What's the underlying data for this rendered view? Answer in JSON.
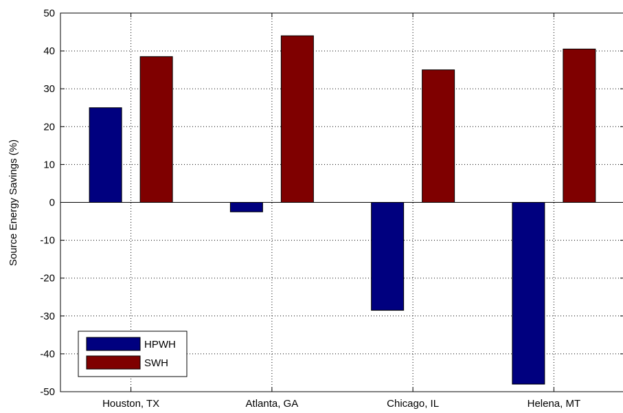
{
  "chart_data": {
    "type": "bar",
    "title": "",
    "xlabel": "",
    "ylabel": "Source Energy Savings (%)",
    "categories": [
      "Houston, TX",
      "Atlanta, GA",
      "Chicago, IL",
      "Helena, MT"
    ],
    "series": [
      {
        "name": "HPWH",
        "values": [
          25,
          -2.5,
          -28.5,
          -48
        ],
        "color": "#00007f"
      },
      {
        "name": "SWH",
        "values": [
          38.5,
          44,
          35,
          40.5
        ],
        "color": "#7f0000"
      }
    ],
    "ylim": [
      -50,
      50
    ],
    "yticks": [
      50,
      40,
      30,
      20,
      10,
      0,
      -10,
      -20,
      -30,
      -40,
      -50
    ],
    "grid": true,
    "legend_position": "bottom-left"
  }
}
